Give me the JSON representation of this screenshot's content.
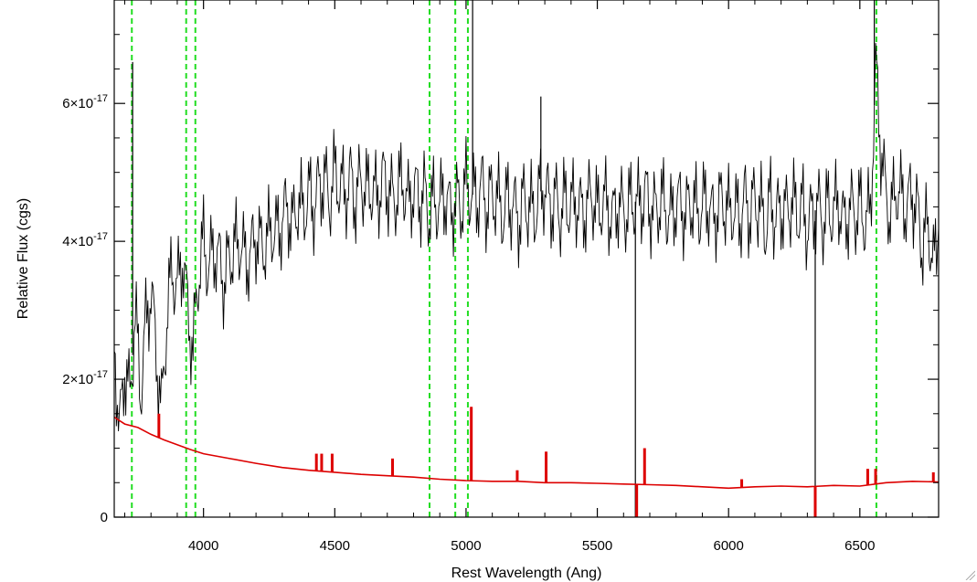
{
  "chart_data": {
    "type": "line",
    "title": "",
    "xlabel": "Rest Wavelength (Ang)",
    "ylabel": "Relative Flux (cgs)",
    "xlim": [
      3660,
      6800
    ],
    "ylim": [
      0,
      7.5e-17
    ],
    "x_ticks": [
      4000,
      4500,
      5000,
      5500,
      6000,
      6500
    ],
    "x_tick_labels": [
      "4000",
      "4500",
      "5000",
      "5500",
      "6000",
      "6500"
    ],
    "y_ticks": [
      0,
      2e-17,
      4e-17,
      6e-17
    ],
    "y_tick_labels": [
      {
        "mantissa": "0",
        "exponent": ""
      },
      {
        "mantissa": "2×10",
        "exponent": "-17"
      },
      {
        "mantissa": "4×10",
        "exponent": "-17"
      },
      {
        "mantissa": "6×10",
        "exponent": "-17"
      }
    ],
    "grid": false,
    "reference_lines_x": [
      3727,
      3934,
      3969,
      4861,
      4959,
      5007,
      6563
    ],
    "series": [
      {
        "color": "#000000",
        "style": "solid",
        "sample_step": 20,
        "points": [
          [
            3660,
            2.6e-17
          ],
          [
            3680,
            1.2e-17
          ],
          [
            3700,
            2.2e-17
          ],
          [
            3720,
            1.7e-17
          ],
          [
            3740,
            3e-17
          ],
          [
            3760,
            1.8e-17
          ],
          [
            3780,
            2.8e-17
          ],
          [
            3800,
            3.3e-17
          ],
          [
            3820,
            2.4e-17
          ],
          [
            3840,
            1.5e-17
          ],
          [
            3860,
            2.9e-17
          ],
          [
            3880,
            3.6e-17
          ],
          [
            3900,
            3.3e-17
          ],
          [
            3920,
            3.8e-17
          ],
          [
            3940,
            3e-17
          ],
          [
            3960,
            2.4e-17
          ],
          [
            3980,
            3.5e-17
          ],
          [
            4000,
            4e-17
          ],
          [
            4020,
            3.6e-17
          ],
          [
            4040,
            3.9e-17
          ],
          [
            4060,
            3.7e-17
          ],
          [
            4080,
            3.4e-17
          ],
          [
            4100,
            3.8e-17
          ],
          [
            4120,
            3.9e-17
          ],
          [
            4140,
            4e-17
          ],
          [
            4160,
            3.7e-17
          ],
          [
            4180,
            3.8e-17
          ],
          [
            4200,
            4.1e-17
          ],
          [
            4220,
            3.9e-17
          ],
          [
            4240,
            4e-17
          ],
          [
            4260,
            4.2e-17
          ],
          [
            4280,
            4.1e-17
          ],
          [
            4300,
            4.3e-17
          ],
          [
            4320,
            4.5e-17
          ],
          [
            4340,
            4.2e-17
          ],
          [
            4360,
            4.6e-17
          ],
          [
            4380,
            4.4e-17
          ],
          [
            4400,
            4.7e-17
          ],
          [
            4420,
            4.5e-17
          ],
          [
            4440,
            4.8e-17
          ],
          [
            4460,
            4.9e-17
          ],
          [
            4480,
            4.6e-17
          ],
          [
            4500,
            5e-17
          ],
          [
            4520,
            4.8e-17
          ],
          [
            4540,
            4.7e-17
          ],
          [
            4560,
            4.9e-17
          ],
          [
            4580,
            4.6e-17
          ],
          [
            4600,
            4.9e-17
          ],
          [
            4620,
            4.7e-17
          ],
          [
            4640,
            4.8e-17
          ],
          [
            4660,
            4.6e-17
          ],
          [
            4680,
            4.9e-17
          ],
          [
            4700,
            4.8e-17
          ],
          [
            4720,
            4.6e-17
          ],
          [
            4740,
            4.7e-17
          ],
          [
            4760,
            4.9e-17
          ],
          [
            4780,
            4.5e-17
          ],
          [
            4800,
            4.8e-17
          ],
          [
            4820,
            4.6e-17
          ],
          [
            4840,
            4.7e-17
          ],
          [
            4860,
            4.4e-17
          ],
          [
            4880,
            4.6e-17
          ],
          [
            4900,
            4.5e-17
          ],
          [
            4920,
            4.7e-17
          ],
          [
            4940,
            4.4e-17
          ],
          [
            4960,
            4.6e-17
          ],
          [
            4980,
            4.5e-17
          ],
          [
            5000,
            4.8e-17
          ],
          [
            5020,
            4.7e-17
          ],
          [
            5040,
            4.6e-17
          ],
          [
            5060,
            4.8e-17
          ],
          [
            5080,
            4.5e-17
          ],
          [
            5100,
            4.7e-17
          ],
          [
            5120,
            4.6e-17
          ],
          [
            5140,
            4.4e-17
          ],
          [
            5160,
            4.6e-17
          ],
          [
            5180,
            4.5e-17
          ],
          [
            5200,
            4.3e-17
          ],
          [
            5220,
            4.6e-17
          ],
          [
            5240,
            4.5e-17
          ],
          [
            5260,
            4.4e-17
          ],
          [
            5280,
            4.7e-17
          ],
          [
            5300,
            4.8e-17
          ],
          [
            5320,
            4.5e-17
          ],
          [
            5340,
            4.6e-17
          ],
          [
            5360,
            4.4e-17
          ],
          [
            5380,
            4.6e-17
          ],
          [
            5400,
            4.5e-17
          ],
          [
            5420,
            4.6e-17
          ],
          [
            5440,
            4.4e-17
          ],
          [
            5460,
            4.5e-17
          ],
          [
            5480,
            4.7e-17
          ],
          [
            5500,
            4.4e-17
          ],
          [
            5520,
            4.6e-17
          ],
          [
            5540,
            4.5e-17
          ],
          [
            5560,
            4.3e-17
          ],
          [
            5580,
            4.6e-17
          ],
          [
            5600,
            4.4e-17
          ],
          [
            5620,
            4.5e-17
          ],
          [
            5640,
            4.6e-17
          ],
          [
            5660,
            4.5e-17
          ],
          [
            5680,
            4.7e-17
          ],
          [
            5700,
            4.5e-17
          ],
          [
            5720,
            4.4e-17
          ],
          [
            5740,
            4.6e-17
          ],
          [
            5760,
            4.5e-17
          ],
          [
            5780,
            4.3e-17
          ],
          [
            5800,
            4.6e-17
          ],
          [
            5820,
            4.5e-17
          ],
          [
            5840,
            4.4e-17
          ],
          [
            5860,
            4.6e-17
          ],
          [
            5880,
            4.4e-17
          ],
          [
            5900,
            4.5e-17
          ],
          [
            5920,
            4.6e-17
          ],
          [
            5940,
            4.3e-17
          ],
          [
            5960,
            4.5e-17
          ],
          [
            5980,
            4.6e-17
          ],
          [
            6000,
            4.4e-17
          ],
          [
            6020,
            4.5e-17
          ],
          [
            6040,
            4.3e-17
          ],
          [
            6060,
            4.6e-17
          ],
          [
            6080,
            4.4e-17
          ],
          [
            6100,
            4.6e-17
          ],
          [
            6120,
            4.5e-17
          ],
          [
            6140,
            4.2e-17
          ],
          [
            6160,
            4.6e-17
          ],
          [
            6180,
            4.3e-17
          ],
          [
            6200,
            4.5e-17
          ],
          [
            6220,
            4.4e-17
          ],
          [
            6240,
            4.6e-17
          ],
          [
            6260,
            4.4e-17
          ],
          [
            6280,
            4.5e-17
          ],
          [
            6300,
            4.2e-17
          ],
          [
            6320,
            4.4e-17
          ],
          [
            6340,
            4.5e-17
          ],
          [
            6360,
            4.3e-17
          ],
          [
            6380,
            4.5e-17
          ],
          [
            6400,
            4.4e-17
          ],
          [
            6420,
            4.6e-17
          ],
          [
            6440,
            4.2e-17
          ],
          [
            6460,
            4.5e-17
          ],
          [
            6480,
            4.4e-17
          ],
          [
            6500,
            4.5e-17
          ],
          [
            6520,
            4.3e-17
          ],
          [
            6540,
            4.4e-17
          ],
          [
            6560,
            6.5e-17
          ],
          [
            6580,
            5.4e-17
          ],
          [
            6600,
            4.6e-17
          ],
          [
            6620,
            4.4e-17
          ],
          [
            6640,
            4.8e-17
          ],
          [
            6660,
            4.6e-17
          ],
          [
            6680,
            4.5e-17
          ],
          [
            6700,
            4.7e-17
          ],
          [
            6720,
            4.4e-17
          ],
          [
            6740,
            3.9e-17
          ],
          [
            6760,
            4.3e-17
          ],
          [
            6780,
            3.6e-17
          ],
          [
            6800,
            4.2e-17
          ]
        ],
        "spikes": [
          [
            3730,
            6.6e-17
          ],
          [
            5025,
            7.5e-17
          ],
          [
            5285,
            6.1e-17
          ],
          [
            5645,
            0
          ],
          [
            6330,
            0
          ],
          [
            6555,
            7.5e-17
          ]
        ]
      },
      {
        "color": "#dd0000",
        "style": "solid",
        "points": [
          [
            3660,
            1.45e-17
          ],
          [
            3700,
            1.35e-17
          ],
          [
            3750,
            1.3e-17
          ],
          [
            3800,
            1.2e-17
          ],
          [
            3850,
            1.12e-17
          ],
          [
            3900,
            1.05e-17
          ],
          [
            3950,
            9.8e-18
          ],
          [
            4000,
            9.2e-18
          ],
          [
            4100,
            8.5e-18
          ],
          [
            4200,
            7.8e-18
          ],
          [
            4300,
            7.2e-18
          ],
          [
            4400,
            6.8e-18
          ],
          [
            4500,
            6.5e-18
          ],
          [
            4600,
            6.2e-18
          ],
          [
            4700,
            6e-18
          ],
          [
            4800,
            5.8e-18
          ],
          [
            4900,
            5.5e-18
          ],
          [
            5000,
            5.3e-18
          ],
          [
            5100,
            5.2e-18
          ],
          [
            5200,
            5.2e-18
          ],
          [
            5300,
            5e-18
          ],
          [
            5400,
            5e-18
          ],
          [
            5500,
            4.9e-18
          ],
          [
            5600,
            4.8e-18
          ],
          [
            5700,
            4.7e-18
          ],
          [
            5800,
            4.6e-18
          ],
          [
            5900,
            4.4e-18
          ],
          [
            6000,
            4.2e-18
          ],
          [
            6100,
            4.4e-18
          ],
          [
            6200,
            4.5e-18
          ],
          [
            6300,
            4.4e-18
          ],
          [
            6400,
            4.6e-18
          ],
          [
            6500,
            4.5e-18
          ],
          [
            6600,
            5e-18
          ],
          [
            6700,
            5.2e-18
          ],
          [
            6800,
            5.1e-18
          ]
        ],
        "spikes": [
          [
            3830,
            1.5e-17
          ],
          [
            4430,
            9.2e-18
          ],
          [
            4450,
            9.2e-18
          ],
          [
            4490,
            9.2e-18
          ],
          [
            4720,
            8.5e-18
          ],
          [
            5020,
            1.6e-17
          ],
          [
            5195,
            6.8e-18
          ],
          [
            5305,
            9.5e-18
          ],
          [
            5650,
            0
          ],
          [
            5680,
            1e-17
          ],
          [
            6050,
            5.5e-18
          ],
          [
            6330,
            0
          ],
          [
            6530,
            7e-18
          ],
          [
            6560,
            7e-18
          ],
          [
            6780,
            6.5e-18
          ]
        ]
      }
    ]
  },
  "colors": {
    "reference_line": "#22dd22",
    "axis": "#000000",
    "background": "#ffffff"
  },
  "window": {
    "resize_grip_icon": "resize-grip-icon"
  }
}
